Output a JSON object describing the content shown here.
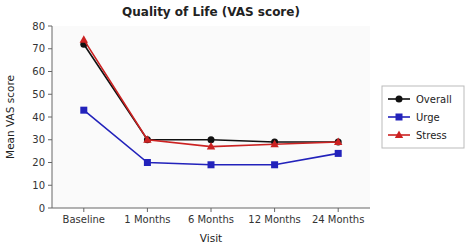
{
  "chart_data": {
    "type": "line",
    "title": "Quality of Life (VAS score)",
    "x_label": "Visit",
    "y_label": "Mean VAS score",
    "categories": [
      "Baseline",
      "1 Months",
      "6 Months",
      "12 Months",
      "24 Months"
    ],
    "series": [
      {
        "name": "Overall",
        "color": "#111111",
        "marker": "circle",
        "values": [
          72,
          30,
          30,
          29,
          29
        ]
      },
      {
        "name": "Urge",
        "color": "#2222bb",
        "marker": "square",
        "values": [
          43,
          20,
          19,
          19,
          24
        ]
      },
      {
        "name": "Stress",
        "color": "#cc2222",
        "marker": "triangle",
        "values": [
          74,
          30,
          27,
          28,
          29
        ]
      }
    ],
    "ylim": [
      0,
      80
    ],
    "yticks": [
      0,
      10,
      20,
      30,
      40,
      50,
      60,
      70,
      80
    ],
    "grid": false,
    "legend": "right"
  }
}
